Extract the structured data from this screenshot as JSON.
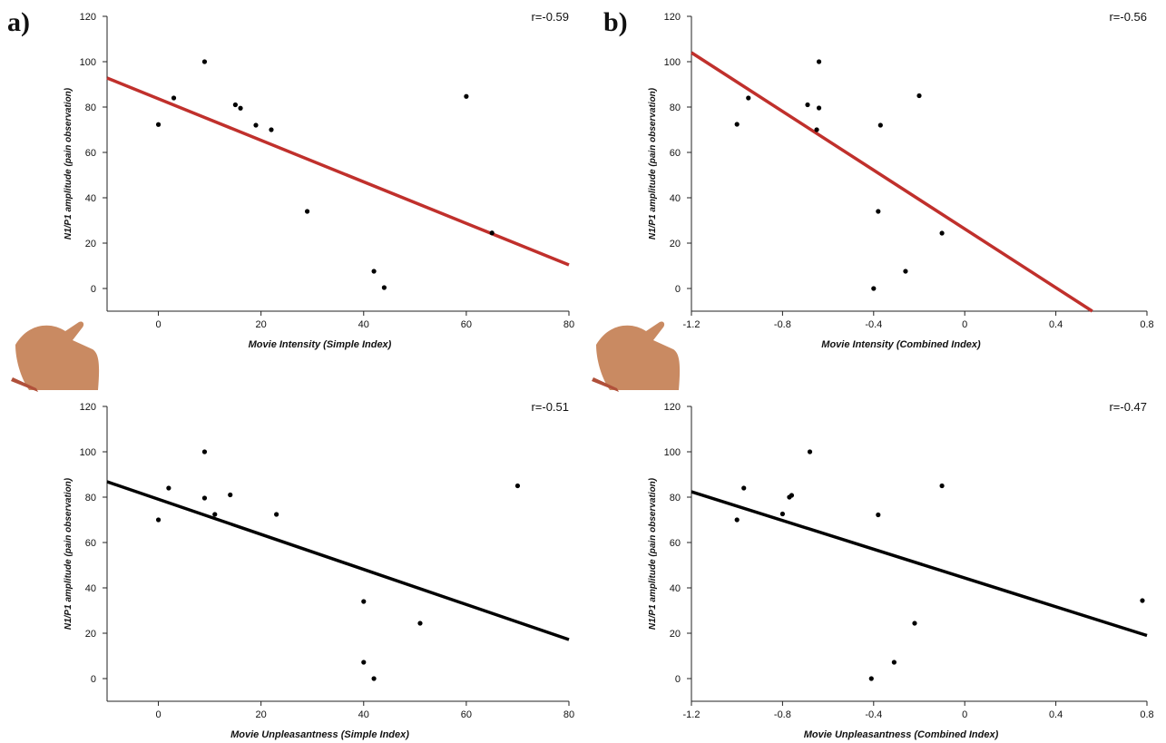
{
  "chart_data": [
    {
      "type": "scatter",
      "panel_label": "a)",
      "annotation": "r=-0.59",
      "xlabel": "Movie Intensity (Simple Index)",
      "ylabel": "N1/P1 amplitude (pain observation)",
      "x": [
        0,
        3,
        9,
        15,
        16,
        19,
        22,
        29,
        42,
        44,
        60,
        65
      ],
      "y": [
        72.3,
        84,
        100,
        81,
        79.5,
        72,
        70,
        34,
        7.6,
        0.4,
        84.7,
        24.5
      ],
      "color": "#000000",
      "xlim": [
        -10,
        80
      ],
      "ylim": [
        -10,
        120
      ],
      "xticks": [
        0,
        20,
        40,
        60,
        80
      ],
      "yticks": [
        0,
        20,
        40,
        60,
        80,
        100,
        120
      ],
      "fit": {
        "x": [
          -10,
          80
        ],
        "y": [
          92.8,
          10.4
        ],
        "color": "#c0302c"
      }
    },
    {
      "type": "scatter",
      "panel_label": "b)",
      "annotation": "r=-0.56",
      "xlabel": "Movie Intensity (Combined Index)",
      "ylabel": "N1/P1 amplitude (pain observation)",
      "x": [
        -1.0,
        -0.95,
        -0.69,
        -0.64,
        -0.65,
        -0.64,
        -0.37,
        -0.2,
        -0.38,
        -0.1,
        -0.26,
        -0.4
      ],
      "y": [
        72.4,
        84,
        81,
        79.6,
        70,
        100,
        72,
        85,
        34,
        24.4,
        7.6,
        0
      ],
      "color": "#000000",
      "xlim": [
        -1.2,
        0.8
      ],
      "ylim": [
        -10,
        120
      ],
      "xticks": [
        -1.2,
        -0.8,
        -0.4,
        0,
        0.4,
        0.8
      ],
      "yticks": [
        0,
        20,
        40,
        60,
        80,
        100,
        120
      ],
      "fit": {
        "x": [
          -1.2,
          0.56
        ],
        "y": [
          104,
          -10
        ],
        "color": "#c0302c"
      }
    },
    {
      "type": "scatter",
      "annotation": "r=-0.51",
      "xlabel": "Movie Unpleasantness (Simple Index)",
      "ylabel": "N1/P1 amplitude (pain observation)",
      "x": [
        0,
        2,
        9,
        9,
        11,
        14,
        23,
        40,
        40,
        42,
        51,
        70
      ],
      "y": [
        70,
        84,
        100,
        79.6,
        72.4,
        81,
        72.4,
        34,
        7.2,
        0,
        24.4,
        85
      ],
      "color": "#000000",
      "xlim": [
        -10,
        80
      ],
      "ylim": [
        -10,
        120
      ],
      "xticks": [
        0,
        20,
        40,
        60,
        80
      ],
      "yticks": [
        0,
        20,
        40,
        60,
        80,
        100,
        120
      ],
      "fit": {
        "x": [
          -10,
          80
        ],
        "y": [
          86.8,
          17.2
        ],
        "color": "#000000"
      }
    },
    {
      "type": "scatter",
      "annotation": "r=-0.47",
      "xlabel": "Movie Unpleasantness (Combined Index)",
      "ylabel": "N1/P1 amplitude (pain observation)",
      "x": [
        -1.0,
        -0.97,
        -0.8,
        -0.77,
        -0.76,
        -0.68,
        -0.38,
        -0.1,
        -0.22,
        -0.31,
        -0.41,
        0.78
      ],
      "y": [
        70,
        84,
        72.6,
        80,
        80.8,
        100,
        72.2,
        85,
        24.4,
        7.2,
        0,
        34.4
      ],
      "color": "#000000",
      "xlim": [
        -1.2,
        0.8
      ],
      "ylim": [
        -10,
        120
      ],
      "xticks": [
        -1.2,
        -0.8,
        -0.4,
        0,
        0.4,
        0.8
      ],
      "yticks": [
        0,
        20,
        40,
        60,
        80,
        100,
        120
      ],
      "fit": {
        "x": [
          -1.2,
          0.8
        ],
        "y": [
          82.4,
          19
        ],
        "color": "#000000"
      }
    }
  ]
}
